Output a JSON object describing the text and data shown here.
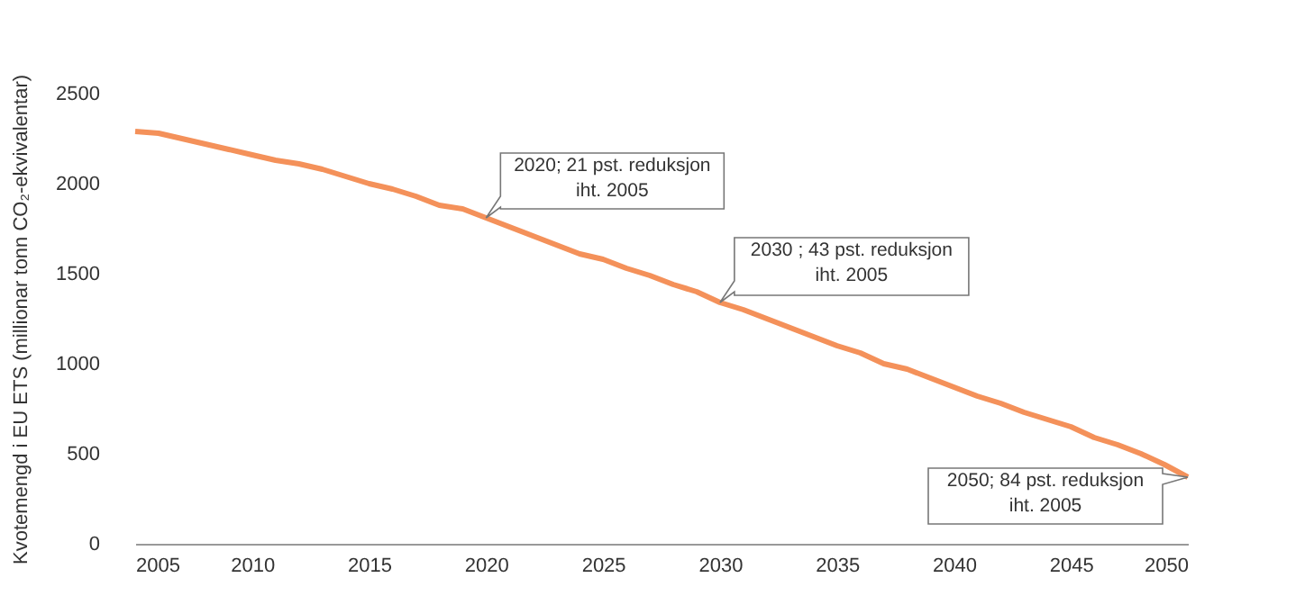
{
  "chart_data": {
    "type": "line",
    "ylabel": "Kvotemengd i EU ETS (millionar tonn CO₂-ekvivalentar)",
    "x": [
      2005,
      2006,
      2007,
      2008,
      2009,
      2010,
      2011,
      2012,
      2013,
      2014,
      2015,
      2016,
      2017,
      2018,
      2019,
      2020,
      2021,
      2022,
      2023,
      2024,
      2025,
      2026,
      2027,
      2028,
      2029,
      2030,
      2031,
      2032,
      2033,
      2034,
      2035,
      2036,
      2037,
      2038,
      2039,
      2040,
      2041,
      2042,
      2043,
      2044,
      2045,
      2046,
      2047,
      2048,
      2049,
      2050
    ],
    "series": [
      {
        "color": "#f4915a",
        "values": [
          2290,
          2280,
          2250,
          2220,
          2190,
          2160,
          2130,
          2110,
          2080,
          2040,
          2000,
          1970,
          1930,
          1880,
          1860,
          1810,
          1760,
          1710,
          1660,
          1610,
          1580,
          1530,
          1490,
          1440,
          1400,
          1340,
          1300,
          1250,
          1200,
          1150,
          1100,
          1060,
          1000,
          970,
          920,
          870,
          820,
          780,
          730,
          690,
          650,
          590,
          550,
          500,
          440,
          370
        ]
      }
    ],
    "xlim": [
      2005,
      2050
    ],
    "xticks": [
      2005,
      2010,
      2015,
      2020,
      2025,
      2030,
      2035,
      2040,
      2045,
      2050
    ],
    "ylim": [
      0,
      2500
    ],
    "yticks": [
      0,
      500,
      1000,
      1500,
      2000,
      2500
    ],
    "grid": false,
    "annotations": [
      {
        "text": "2020; 21 pst. reduksjon\niht. 2005",
        "x": 2020,
        "y": 1810
      },
      {
        "text": "2030 ; 43 pst. reduksjon\niht. 2005",
        "x": 2030,
        "y": 1340
      },
      {
        "text": "2050; 84 pst. reduksjon\niht. 2005",
        "x": 2050,
        "y": 370
      }
    ]
  }
}
